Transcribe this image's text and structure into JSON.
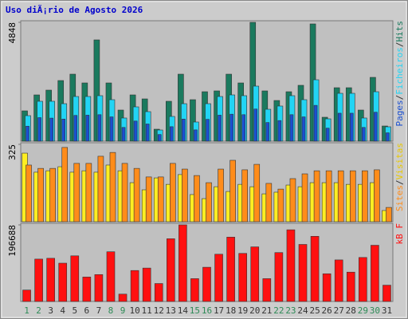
{
  "chart_data": [
    {
      "type": "bar",
      "title": "Uso diÃ¡rio de Agosto 2026",
      "ylim": [
        0,
        4848
      ],
      "yticks": [
        4848
      ],
      "legend_separator": "/",
      "series": [
        {
          "name": "Hits",
          "color": "#1a7a5e",
          "values": [
            1236,
            1887,
            2082,
            2473,
            2733,
            2375,
            4132,
            2375,
            1269,
            1887,
            1724,
            488,
            1627,
            2733,
            1692,
            2017,
            2050,
            2733,
            2375,
            4848,
            2050,
            1659,
            2017,
            2278,
            4783,
            976,
            2180,
            2180,
            1269,
            2603,
            618
          ]
        },
        {
          "name": "Ficheiros",
          "color": "#22d4f4",
          "values": [
            1041,
            1627,
            1627,
            1529,
            1822,
            1822,
            1855,
            1692,
            944,
            1399,
            1204,
            455,
            1009,
            1529,
            781,
            1529,
            1822,
            1887,
            1855,
            2245,
            1301,
            1432,
            1855,
            1692,
            2505,
            911,
            1952,
            1952,
            944,
            2017,
            586
          ]
        },
        {
          "name": "Pages",
          "color": "#1a4fd0",
          "values": [
            610,
            960,
            940,
            900,
            1050,
            1060,
            1080,
            990,
            560,
            820,
            700,
            270,
            590,
            900,
            460,
            890,
            1060,
            1100,
            1080,
            1310,
            760,
            840,
            1080,
            990,
            1460,
            530,
            1140,
            1140,
            560,
            1180,
            340
          ]
        }
      ]
    },
    {
      "type": "bar",
      "ylim": [
        0,
        325
      ],
      "yticks": [
        325
      ],
      "legend_separator": "/",
      "series": [
        {
          "name": "Visitas",
          "color": "#ffee22",
          "values": [
            288,
            208,
            214,
            231,
            208,
            214,
            208,
            238,
            214,
            164,
            134,
            184,
            157,
            198,
            114,
            97,
            147,
            127,
            157,
            147,
            117,
            124,
            154,
            147,
            164,
            164,
            164,
            157,
            157,
            164,
            47
          ]
        },
        {
          "name": "Sites",
          "color": "#ff8c1a",
          "values": [
            238,
            224,
            224,
            312,
            245,
            245,
            275,
            291,
            245,
            224,
            188,
            188,
            245,
            221,
            194,
            164,
            221,
            258,
            218,
            241,
            161,
            137,
            181,
            201,
            214,
            214,
            214,
            214,
            214,
            218,
            60
          ]
        }
      ]
    },
    {
      "type": "bar",
      "ylim": [
        0,
        196688
      ],
      "yticks": [
        196688
      ],
      "categories": [
        "1",
        "2",
        "3",
        "4",
        "5",
        "6",
        "7",
        "8",
        "9",
        "10",
        "11",
        "12",
        "13",
        "14",
        "15",
        "16",
        "17",
        "18",
        "19",
        "20",
        "21",
        "22",
        "23",
        "24",
        "25",
        "26",
        "27",
        "28",
        "29",
        "30",
        "31"
      ],
      "category_colors": [
        "#2e8b57",
        "#2e8b57",
        "#333333",
        "#333333",
        "#333333",
        "#333333",
        "#333333",
        "#2e8b57",
        "#2e8b57",
        "#333333",
        "#333333",
        "#333333",
        "#333333",
        "#333333",
        "#2e8b57",
        "#2e8b57",
        "#333333",
        "#333333",
        "#333333",
        "#333333",
        "#333333",
        "#2e8b57",
        "#2e8b57",
        "#333333",
        "#333333",
        "#333333",
        "#333333",
        "#333333",
        "#2e8b57",
        "#2e8b57",
        "#333333"
      ],
      "series": [
        {
          "name": "kB F",
          "color": "#ff1010",
          "values": [
            29294,
            108806,
            110898,
            98344,
            117175,
            62773,
            69050,
            127637,
            18832,
            79510,
            85787,
            46033,
            161112,
            196688,
            58587,
            87879,
            121359,
            165296,
            123451,
            140190,
            58587,
            125543,
            184127,
            146466,
            167388,
            71141,
            106713,
            75325,
            112990,
            144373,
            41847
          ]
        }
      ]
    }
  ]
}
